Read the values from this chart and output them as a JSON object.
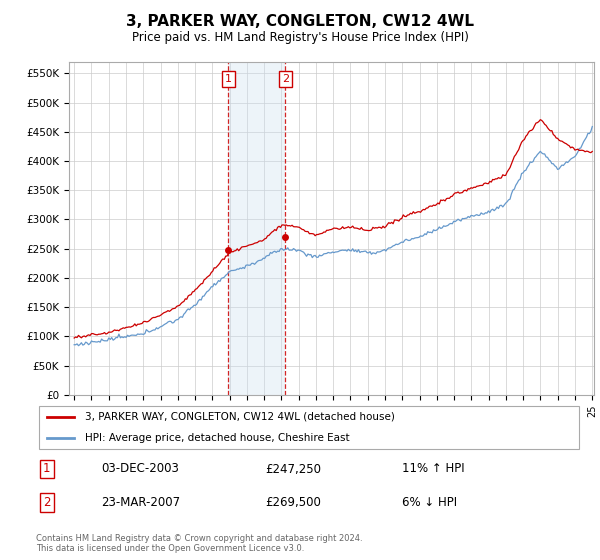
{
  "title": "3, PARKER WAY, CONGLETON, CW12 4WL",
  "subtitle": "Price paid vs. HM Land Registry's House Price Index (HPI)",
  "hpi_label": "HPI: Average price, detached house, Cheshire East",
  "property_label": "3, PARKER WAY, CONGLETON, CW12 4WL (detached house)",
  "sale1_date": "03-DEC-2003",
  "sale1_price": 247250,
  "sale1_hpi_pct": "11% ↑ HPI",
  "sale2_date": "23-MAR-2007",
  "sale2_price": 269500,
  "sale2_hpi_pct": "6% ↓ HPI",
  "sale1_price_str": "£247,250",
  "sale2_price_str": "£269,500",
  "footnote": "Contains HM Land Registry data © Crown copyright and database right 2024.\nThis data is licensed under the Open Government Licence v3.0.",
  "ylim": [
    0,
    570000
  ],
  "yticks": [
    0,
    50000,
    100000,
    150000,
    200000,
    250000,
    300000,
    350000,
    400000,
    450000,
    500000,
    550000
  ],
  "sale1_year": 2003.92,
  "sale2_year": 2007.23,
  "background_color": "#ffffff",
  "grid_color": "#cccccc",
  "hpi_line_color": "#6699cc",
  "property_line_color": "#cc0000",
  "shade_color": "#cce0f0",
  "marker_box_color": "#cc0000"
}
